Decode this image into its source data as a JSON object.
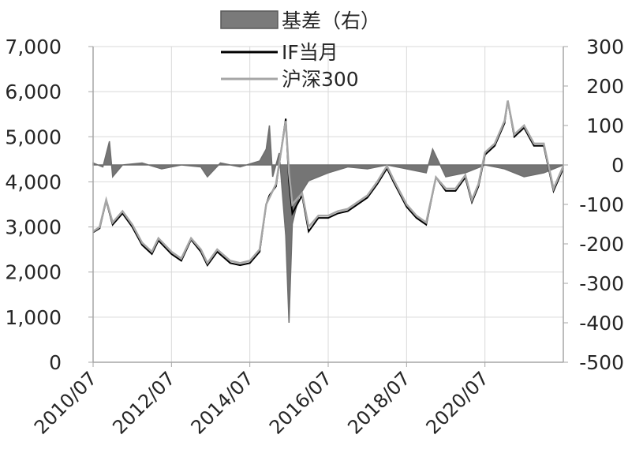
{
  "chart_data": {
    "type": "line",
    "title": "",
    "series": [
      {
        "name": "基差（右）",
        "kind": "area",
        "axis": "right",
        "color": "#6e6e6e",
        "points": [
          [
            "2010/07",
            5
          ],
          [
            "2010/10",
            -5
          ],
          [
            "2010/12",
            60
          ],
          [
            "2011/01",
            -30
          ],
          [
            "2011/04",
            0
          ],
          [
            "2011/10",
            5
          ],
          [
            "2012/04",
            -10
          ],
          [
            "2012/10",
            0
          ],
          [
            "2013/04",
            -5
          ],
          [
            "2013/06",
            -30
          ],
          [
            "2013/10",
            5
          ],
          [
            "2014/04",
            -5
          ],
          [
            "2014/10",
            10
          ],
          [
            "2014/12",
            40
          ],
          [
            "2015/01",
            100
          ],
          [
            "2015/02",
            -30
          ],
          [
            "2015/04",
            30
          ],
          [
            "2015/06",
            -180
          ],
          [
            "2015/07",
            -400
          ],
          [
            "2015/08",
            -150
          ],
          [
            "2015/10",
            -80
          ],
          [
            "2016/01",
            -40
          ],
          [
            "2016/07",
            -20
          ],
          [
            "2017/01",
            -5
          ],
          [
            "2017/07",
            -10
          ],
          [
            "2018/01",
            0
          ],
          [
            "2018/07",
            -10
          ],
          [
            "2019/01",
            -20
          ],
          [
            "2019/03",
            40
          ],
          [
            "2019/07",
            -30
          ],
          [
            "2020/01",
            -20
          ],
          [
            "2020/07",
            0
          ],
          [
            "2021/01",
            -10
          ],
          [
            "2021/07",
            -30
          ],
          [
            "2022/01",
            -20
          ],
          [
            "2022/07",
            0
          ]
        ]
      },
      {
        "name": "IF当月",
        "kind": "line",
        "axis": "left",
        "color": "#000000",
        "points": [
          [
            "2010/07",
            2880
          ],
          [
            "2010/09",
            2970
          ],
          [
            "2010/11",
            3580
          ],
          [
            "2011/01",
            3050
          ],
          [
            "2011/04",
            3300
          ],
          [
            "2011/07",
            3000
          ],
          [
            "2011/10",
            2600
          ],
          [
            "2012/01",
            2400
          ],
          [
            "2012/03",
            2700
          ],
          [
            "2012/07",
            2400
          ],
          [
            "2012/10",
            2250
          ],
          [
            "2013/01",
            2720
          ],
          [
            "2013/04",
            2450
          ],
          [
            "2013/06",
            2150
          ],
          [
            "2013/09",
            2450
          ],
          [
            "2014/01",
            2200
          ],
          [
            "2014/04",
            2150
          ],
          [
            "2014/07",
            2200
          ],
          [
            "2014/10",
            2450
          ],
          [
            "2014/12",
            3500
          ],
          [
            "2015/01",
            3700
          ],
          [
            "2015/03",
            3900
          ],
          [
            "2015/06",
            5400
          ],
          [
            "2015/07",
            4000
          ],
          [
            "2015/08",
            3300
          ],
          [
            "2015/11",
            3700
          ],
          [
            "2016/01",
            2900
          ],
          [
            "2016/04",
            3200
          ],
          [
            "2016/07",
            3200
          ],
          [
            "2016/10",
            3300
          ],
          [
            "2017/01",
            3350
          ],
          [
            "2017/07",
            3650
          ],
          [
            "2017/10",
            3950
          ],
          [
            "2018/01",
            4300
          ],
          [
            "2018/03",
            4000
          ],
          [
            "2018/07",
            3450
          ],
          [
            "2018/10",
            3200
          ],
          [
            "2019/01",
            3050
          ],
          [
            "2019/04",
            4100
          ],
          [
            "2019/07",
            3800
          ],
          [
            "2019/10",
            3800
          ],
          [
            "2020/01",
            4100
          ],
          [
            "2020/03",
            3550
          ],
          [
            "2020/05",
            3900
          ],
          [
            "2020/07",
            4600
          ],
          [
            "2020/10",
            4800
          ],
          [
            "2021/01",
            5300
          ],
          [
            "2021/02",
            5800
          ],
          [
            "2021/04",
            5000
          ],
          [
            "2021/07",
            5200
          ],
          [
            "2021/10",
            4800
          ],
          [
            "2022/01",
            4800
          ],
          [
            "2022/04",
            3800
          ],
          [
            "2022/07",
            4300
          ]
        ]
      },
      {
        "name": "沪深300",
        "kind": "line",
        "axis": "left",
        "color": "#a6a6a6",
        "points": [
          [
            "2010/07",
            2900
          ],
          [
            "2010/09",
            3000
          ],
          [
            "2010/11",
            3600
          ],
          [
            "2011/01",
            3100
          ],
          [
            "2011/04",
            3350
          ],
          [
            "2011/07",
            3050
          ],
          [
            "2011/10",
            2650
          ],
          [
            "2012/01",
            2450
          ],
          [
            "2012/03",
            2750
          ],
          [
            "2012/07",
            2450
          ],
          [
            "2012/10",
            2300
          ],
          [
            "2013/01",
            2750
          ],
          [
            "2013/04",
            2500
          ],
          [
            "2013/06",
            2200
          ],
          [
            "2013/09",
            2500
          ],
          [
            "2014/01",
            2250
          ],
          [
            "2014/04",
            2200
          ],
          [
            "2014/07",
            2250
          ],
          [
            "2014/10",
            2500
          ],
          [
            "2014/12",
            3500
          ],
          [
            "2015/01",
            3650
          ],
          [
            "2015/03",
            3950
          ],
          [
            "2015/06",
            5350
          ],
          [
            "2015/07",
            4200
          ],
          [
            "2015/08",
            3500
          ],
          [
            "2015/11",
            3750
          ],
          [
            "2016/01",
            3000
          ],
          [
            "2016/04",
            3250
          ],
          [
            "2016/07",
            3250
          ],
          [
            "2016/10",
            3350
          ],
          [
            "2017/01",
            3400
          ],
          [
            "2017/07",
            3700
          ],
          [
            "2017/10",
            4000
          ],
          [
            "2018/01",
            4350
          ],
          [
            "2018/03",
            4050
          ],
          [
            "2018/07",
            3500
          ],
          [
            "2018/10",
            3250
          ],
          [
            "2019/01",
            3100
          ],
          [
            "2019/04",
            4100
          ],
          [
            "2019/07",
            3850
          ],
          [
            "2019/10",
            3850
          ],
          [
            "2020/01",
            4150
          ],
          [
            "2020/03",
            3600
          ],
          [
            "2020/05",
            3950
          ],
          [
            "2020/07",
            4650
          ],
          [
            "2020/10",
            4850
          ],
          [
            "2021/01",
            5350
          ],
          [
            "2021/02",
            5800
          ],
          [
            "2021/04",
            5050
          ],
          [
            "2021/07",
            5250
          ],
          [
            "2021/10",
            4850
          ],
          [
            "2022/01",
            4850
          ],
          [
            "2022/04",
            3850
          ],
          [
            "2022/07",
            4350
          ]
        ]
      }
    ],
    "y_left": {
      "min": 0,
      "max": 7000,
      "step": 1000,
      "tick_labels": [
        "0",
        "1,000",
        "2,000",
        "3,000",
        "4,000",
        "5,000",
        "6,000",
        "7,000"
      ]
    },
    "y_right": {
      "min": -500,
      "max": 300,
      "step": 100,
      "tick_labels": [
        "-500",
        "-400",
        "-300",
        "-200",
        "-100",
        "0",
        "100",
        "200",
        "300"
      ]
    },
    "x_axis": {
      "start": "2010/07",
      "end": "2022/07",
      "tick_labels": [
        "2010/07",
        "2012/07",
        "2014/07",
        "2016/07",
        "2018/07",
        "2020/07"
      ],
      "label_rotation": "diagonal"
    },
    "grid": true,
    "legend": {
      "placement": "top-center"
    }
  }
}
